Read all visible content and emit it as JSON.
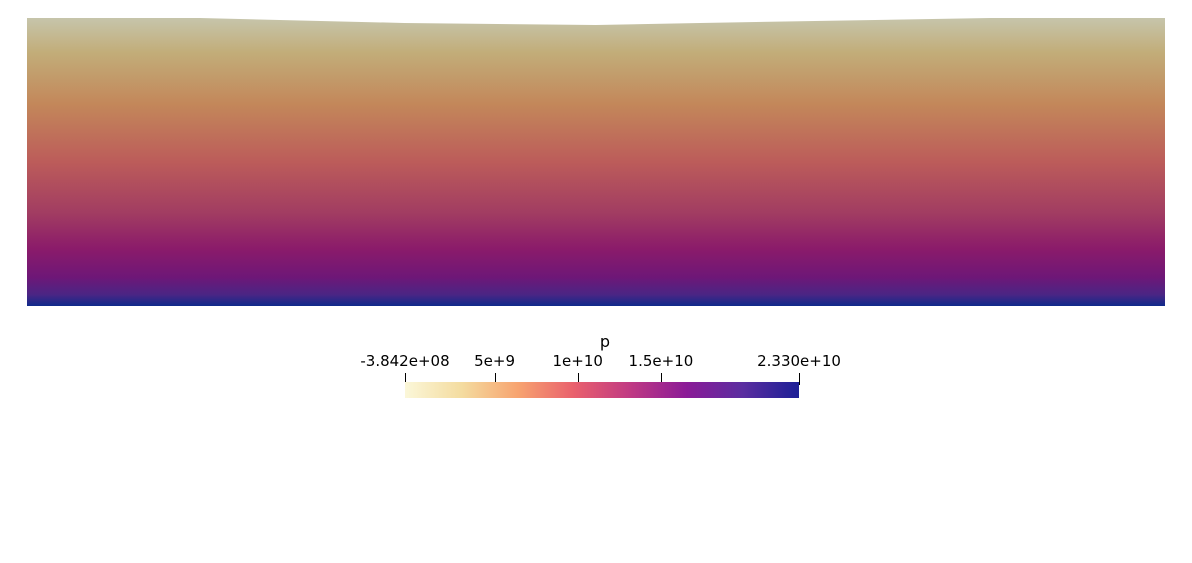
{
  "scalar_name": "p",
  "range": {
    "min": -384200000,
    "max": 23300000000
  },
  "colorbar": {
    "title": "p",
    "tick_labels": [
      {
        "value": -384200000,
        "label": "-3.842e+08"
      },
      {
        "value": 5000000000,
        "label": "5e+9"
      },
      {
        "value": 10000000000,
        "label": "1e+10"
      },
      {
        "value": 15000000000,
        "label": "1.5e+10"
      },
      {
        "value": 23300000000,
        "label": "2.330e+10"
      }
    ],
    "colormap": [
      "#fbf7d9",
      "#f4dca0",
      "#f7a470",
      "#e9606d",
      "#c03a83",
      "#8b1b97",
      "#5b2ea0",
      "#1c1f96"
    ]
  },
  "field": {
    "colors_top_to_bottom": [
      "#c6c4a8",
      "#c2ad78",
      "#c38657",
      "#bd5a5a",
      "#a03a63",
      "#8a1a6a",
      "#6d1777",
      "#4a2585",
      "#0f2a8a"
    ]
  }
}
